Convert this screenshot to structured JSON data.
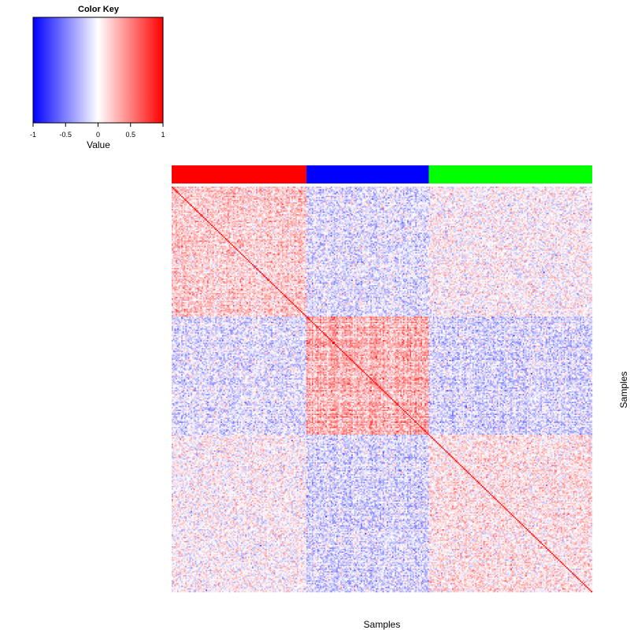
{
  "chart_data": {
    "type": "heatmap",
    "title": "",
    "xlabel": "Samples",
    "ylabel": "Samples",
    "color_key": {
      "title": "Color Key",
      "label": "Value",
      "ticks": [
        "-1",
        "-0.5",
        "0",
        "0.5",
        "1"
      ],
      "range": [
        -1,
        1
      ],
      "colors": {
        "low": "#0000ff",
        "mid": "#ffffff",
        "high": "#ff0000"
      }
    },
    "groups": [
      {
        "color": "#ff0000",
        "count": 99
      },
      {
        "color": "#0000ff",
        "count": 90
      },
      {
        "color": "#00ff00",
        "count": 120
      }
    ],
    "block_means": [
      [
        0.18,
        -0.12,
        0.02
      ],
      [
        -0.12,
        0.3,
        -0.15
      ],
      [
        0.02,
        -0.15,
        0.1
      ]
    ],
    "diagonal_value": 1,
    "grid": false,
    "legend_position": "top-left"
  }
}
